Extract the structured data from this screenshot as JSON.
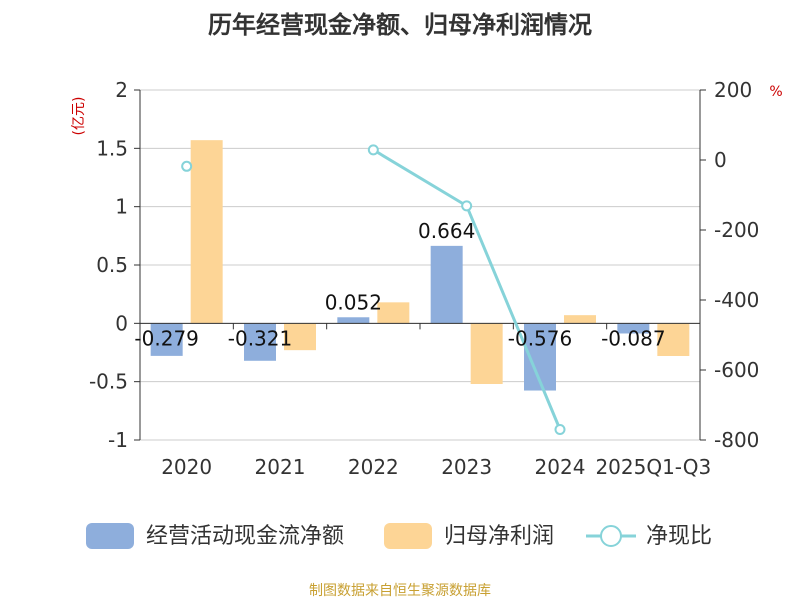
{
  "chart_data": {
    "type": "bar",
    "title": "历年经营现金净额、归母净利润情况",
    "categories": [
      "2020",
      "2021",
      "2022",
      "2023",
      "2024",
      "2025Q1-Q3"
    ],
    "series": [
      {
        "name": "经营活动现金流净额",
        "type": "bar",
        "axis": "left",
        "color": "#8eaedc",
        "values": [
          -0.279,
          -0.321,
          0.052,
          0.664,
          -0.576,
          -0.087
        ],
        "labels": [
          "-0.279",
          "-0.321",
          "0.052",
          "0.664",
          "-0.576",
          "-0.087"
        ]
      },
      {
        "name": "归母净利润",
        "type": "bar",
        "axis": "left",
        "color": "#fdd596",
        "values": [
          1.57,
          -0.23,
          0.18,
          -0.52,
          0.07,
          -0.28
        ]
      },
      {
        "name": "净现比",
        "type": "line",
        "axis": "right",
        "color": "#86d3d9",
        "values": [
          -18,
          null,
          29,
          -131,
          -770,
          null
        ]
      }
    ],
    "ylabel_left": "(亿元)",
    "ylabel_right": "%",
    "ylim_left": [
      -1,
      2
    ],
    "yticks_left": [
      "-1",
      "-0.5",
      "0",
      "0.5",
      "1",
      "1.5",
      "2"
    ],
    "ylim_right": [
      -800,
      200
    ],
    "yticks_right": [
      "-800",
      "-600",
      "-400",
      "-200",
      "0",
      "200"
    ],
    "grid": true,
    "legend_position": "bottom"
  },
  "source_text": "制图数据来自恒生聚源数据库"
}
